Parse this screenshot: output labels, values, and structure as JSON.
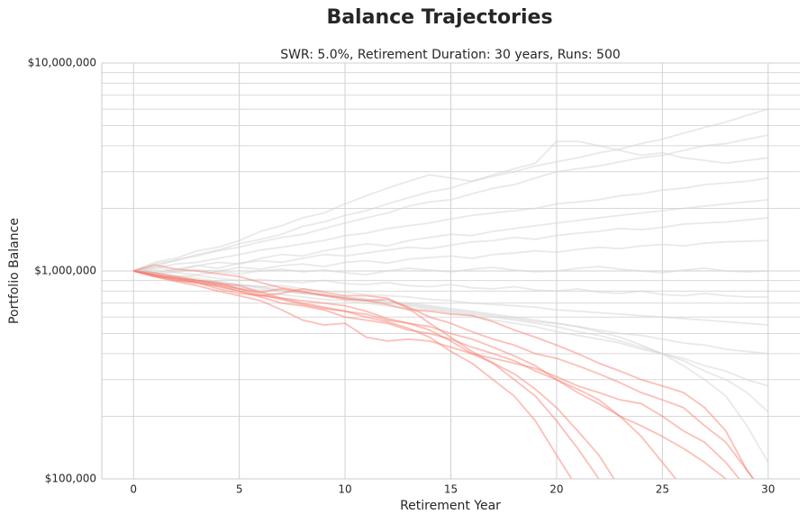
{
  "chart_data": {
    "type": "line",
    "title": "Balance Trajectories",
    "subtitle": "SWR: 5.0%, Retirement Duration: 30 years, Runs: 500",
    "xlabel": "Retirement Year",
    "ylabel": "Portfolio Balance",
    "log_y": true,
    "grid": true,
    "xlim": [
      -1.5,
      31.5
    ],
    "xticks": [
      0,
      5,
      10,
      15,
      20,
      25,
      30
    ],
    "ylim": [
      100000,
      10000000
    ],
    "yticks": [
      {
        "value": 100000,
        "label": "$100,000"
      },
      {
        "value": 1000000,
        "label": "$1,000,000"
      },
      {
        "value": 10000000,
        "label": "$10,000,000"
      }
    ],
    "y_minor_gridlines": [
      200000,
      300000,
      400000,
      500000,
      600000,
      700000,
      800000,
      900000,
      2000000,
      3000000,
      4000000,
      5000000,
      6000000,
      7000000,
      8000000,
      9000000
    ],
    "x": [
      0,
      1,
      2,
      3,
      4,
      5,
      6,
      7,
      8,
      9,
      10,
      11,
      12,
      13,
      14,
      15,
      16,
      17,
      18,
      19,
      20,
      21,
      22,
      23,
      24,
      25,
      26,
      27,
      28,
      29,
      30
    ],
    "series": [
      {
        "color": "#d3d3d3",
        "values": [
          1000000,
          1080000,
          1120000,
          1200000,
          1260000,
          1350000,
          1420000,
          1500000,
          1640000,
          1720000,
          1850000,
          1950000,
          2100000,
          2250000,
          2400000,
          2500000,
          2700000,
          2850000,
          3000000,
          3200000,
          3350000,
          3500000,
          3700000,
          3850000,
          4100000,
          4300000,
          4600000,
          4900000,
          5200000,
          5600000,
          6000000
        ]
      },
      {
        "color": "#d3d3d3",
        "values": [
          1000000,
          1050000,
          1130000,
          1180000,
          1250000,
          1300000,
          1380000,
          1450000,
          1500000,
          1600000,
          1700000,
          1800000,
          1900000,
          2050000,
          2150000,
          2200000,
          2350000,
          2500000,
          2600000,
          2800000,
          3000000,
          3100000,
          3200000,
          3350000,
          3500000,
          3600000,
          3800000,
          4000000,
          4100000,
          4300000,
          4500000
        ]
      },
      {
        "color": "#d3d3d3",
        "values": [
          1000000,
          1100000,
          1150000,
          1250000,
          1300000,
          1400000,
          1550000,
          1650000,
          1800000,
          1900000,
          2100000,
          2300000,
          2500000,
          2700000,
          2900000,
          2800000,
          2700000,
          2900000,
          3100000,
          3300000,
          4200000,
          4200000,
          4000000,
          3800000,
          3600000,
          3700000,
          3500000,
          3400000,
          3300000,
          3400000,
          3500000
        ]
      },
      {
        "color": "#d3d3d3",
        "values": [
          1000000,
          1030000,
          1080000,
          1100000,
          1150000,
          1200000,
          1260000,
          1300000,
          1350000,
          1400000,
          1480000,
          1520000,
          1600000,
          1650000,
          1700000,
          1780000,
          1850000,
          1900000,
          1950000,
          2000000,
          2100000,
          2150000,
          2200000,
          2300000,
          2350000,
          2450000,
          2500000,
          2600000,
          2650000,
          2700000,
          2800000
        ]
      },
      {
        "color": "#d3d3d3",
        "values": [
          1000000,
          980000,
          1020000,
          1060000,
          1100000,
          1080000,
          1150000,
          1200000,
          1180000,
          1250000,
          1300000,
          1350000,
          1320000,
          1400000,
          1450000,
          1500000,
          1480000,
          1550000,
          1600000,
          1650000,
          1700000,
          1750000,
          1800000,
          1850000,
          1900000,
          1950000,
          2000000,
          2050000,
          2100000,
          2150000,
          2200000
        ]
      },
      {
        "color": "#d3d3d3",
        "values": [
          1000000,
          1040000,
          1000000,
          1060000,
          1030000,
          1090000,
          1120000,
          1100000,
          1150000,
          1200000,
          1180000,
          1220000,
          1260000,
          1300000,
          1280000,
          1330000,
          1380000,
          1400000,
          1450000,
          1420000,
          1480000,
          1520000,
          1550000,
          1600000,
          1580000,
          1620000,
          1680000,
          1700000,
          1720000,
          1760000,
          1800000
        ]
      },
      {
        "color": "#d3d3d3",
        "values": [
          1000000,
          970000,
          990000,
          1010000,
          1000000,
          1040000,
          1020000,
          1060000,
          1080000,
          1050000,
          1100000,
          1120000,
          1090000,
          1140000,
          1160000,
          1180000,
          1150000,
          1200000,
          1220000,
          1250000,
          1230000,
          1270000,
          1300000,
          1280000,
          1320000,
          1340000,
          1320000,
          1360000,
          1380000,
          1390000,
          1400000
        ]
      },
      {
        "color": "#d3d3d3",
        "values": [
          1000000,
          1010000,
          980000,
          960000,
          990000,
          970000,
          1000000,
          1020000,
          990000,
          1010000,
          980000,
          960000,
          1000000,
          1030000,
          1010000,
          990000,
          1020000,
          1040000,
          1010000,
          990000,
          1000000,
          1030000,
          1050000,
          1020000,
          1000000,
          980000,
          1010000,
          1030000,
          1000000,
          990000,
          1000000
        ]
      },
      {
        "color": "#d3d3d3",
        "values": [
          1000000,
          960000,
          940000,
          950000,
          920000,
          900000,
          910000,
          890000,
          880000,
          900000,
          870000,
          860000,
          880000,
          850000,
          840000,
          860000,
          830000,
          820000,
          840000,
          810000,
          800000,
          820000,
          790000,
          780000,
          800000,
          770000,
          760000,
          780000,
          760000,
          750000,
          750000
        ]
      },
      {
        "color": "#d3d3d3",
        "values": [
          1000000,
          950000,
          930000,
          900000,
          880000,
          860000,
          840000,
          850000,
          820000,
          800000,
          790000,
          770000,
          760000,
          750000,
          730000,
          720000,
          700000,
          690000,
          680000,
          670000,
          650000,
          640000,
          630000,
          620000,
          610000,
          600000,
          590000,
          580000,
          570000,
          560000,
          550000
        ]
      },
      {
        "color": "#d3d3d3",
        "values": [
          1000000,
          940000,
          920000,
          880000,
          860000,
          830000,
          810000,
          800000,
          780000,
          760000,
          750000,
          730000,
          710000,
          690000,
          670000,
          650000,
          630000,
          610000,
          590000,
          570000,
          560000,
          540000,
          520000,
          500000,
          490000,
          470000,
          450000,
          440000,
          420000,
          410000,
          400000
        ]
      },
      {
        "color": "#d3d3d3",
        "values": [
          1000000,
          950000,
          900000,
          870000,
          850000,
          820000,
          790000,
          770000,
          750000,
          730000,
          720000,
          700000,
          680000,
          660000,
          650000,
          630000,
          610000,
          580000,
          560000,
          540000,
          510000,
          490000,
          470000,
          450000,
          420000,
          400000,
          380000,
          350000,
          330000,
          300000,
          280000
        ]
      },
      {
        "color": "#d3d3d3",
        "values": [
          1000000,
          960000,
          920000,
          900000,
          870000,
          850000,
          830000,
          800000,
          780000,
          760000,
          740000,
          720000,
          700000,
          680000,
          660000,
          640000,
          620000,
          600000,
          580000,
          560000,
          540000,
          510000,
          490000,
          460000,
          430000,
          400000,
          370000,
          330000,
          300000,
          260000,
          210000
        ]
      },
      {
        "color": "#d3d3d3",
        "values": [
          1000000,
          980000,
          950000,
          920000,
          890000,
          860000,
          840000,
          810000,
          790000,
          770000,
          750000,
          730000,
          710000,
          700000,
          680000,
          660000,
          640000,
          620000,
          600000,
          580000,
          560000,
          540000,
          510000,
          480000,
          440000,
          400000,
          350000,
          300000,
          250000,
          180000,
          120000
        ]
      },
      {
        "color": "#fa8072",
        "values": [
          1000000,
          1070000,
          1020000,
          1000000,
          970000,
          940000,
          880000,
          830000,
          800000,
          760000,
          730000,
          720000,
          730000,
          670000,
          600000,
          560000,
          510000,
          470000,
          440000,
          400000,
          380000,
          350000,
          320000,
          290000,
          260000,
          240000,
          220000,
          180000,
          150000,
          110000,
          80000
        ]
      },
      {
        "color": "#fa8072",
        "values": [
          1000000,
          940000,
          900000,
          880000,
          840000,
          800000,
          760000,
          780000,
          820000,
          790000,
          760000,
          760000,
          740000,
          660000,
          560000,
          480000,
          410000,
          360000,
          300000,
          250000,
          190000,
          140000,
          100000,
          70000,
          null,
          null,
          null,
          null,
          null,
          null,
          null
        ]
      },
      {
        "color": "#fa8072",
        "values": [
          1000000,
          950000,
          920000,
          900000,
          860000,
          820000,
          770000,
          730000,
          690000,
          660000,
          640000,
          620000,
          580000,
          560000,
          520000,
          460000,
          400000,
          360000,
          320000,
          270000,
          220000,
          170000,
          130000,
          90000,
          null,
          null,
          null,
          null,
          null,
          null,
          null
        ]
      },
      {
        "color": "#fa8072",
        "values": [
          1000000,
          960000,
          910000,
          880000,
          850000,
          800000,
          750000,
          700000,
          680000,
          650000,
          600000,
          580000,
          560000,
          520000,
          500000,
          470000,
          430000,
          400000,
          370000,
          330000,
          300000,
          270000,
          240000,
          200000,
          160000,
          120000,
          90000,
          null,
          null,
          null,
          null
        ]
      },
      {
        "color": "#fa8072",
        "values": [
          1000000,
          950000,
          920000,
          880000,
          820000,
          780000,
          760000,
          740000,
          700000,
          670000,
          640000,
          600000,
          570000,
          530000,
          480000,
          410000,
          360000,
          300000,
          250000,
          190000,
          130000,
          90000,
          null,
          null,
          null,
          null,
          null,
          null,
          null,
          null,
          null
        ]
      },
      {
        "color": "#fa8072",
        "values": [
          1000000,
          940000,
          890000,
          850000,
          800000,
          760000,
          720000,
          650000,
          580000,
          550000,
          560000,
          480000,
          460000,
          470000,
          460000,
          430000,
          400000,
          380000,
          360000,
          340000,
          310000,
          280000,
          260000,
          240000,
          230000,
          200000,
          170000,
          150000,
          120000,
          90000,
          null
        ]
      },
      {
        "color": "#fa8072",
        "values": [
          1000000,
          960000,
          930000,
          900000,
          870000,
          850000,
          790000,
          740000,
          720000,
          700000,
          680000,
          640000,
          590000,
          560000,
          540000,
          500000,
          470000,
          430000,
          390000,
          350000,
          300000,
          260000,
          230000,
          200000,
          180000,
          160000,
          140000,
          120000,
          100000,
          85000,
          null
        ]
      },
      {
        "color": "#fa8072",
        "values": [
          1000000,
          980000,
          940000,
          900000,
          880000,
          820000,
          790000,
          820000,
          790000,
          770000,
          740000,
          720000,
          690000,
          650000,
          640000,
          620000,
          610000,
          570000,
          520000,
          480000,
          440000,
          400000,
          360000,
          330000,
          300000,
          280000,
          260000,
          220000,
          170000,
          110000,
          80000
        ]
      }
    ]
  }
}
